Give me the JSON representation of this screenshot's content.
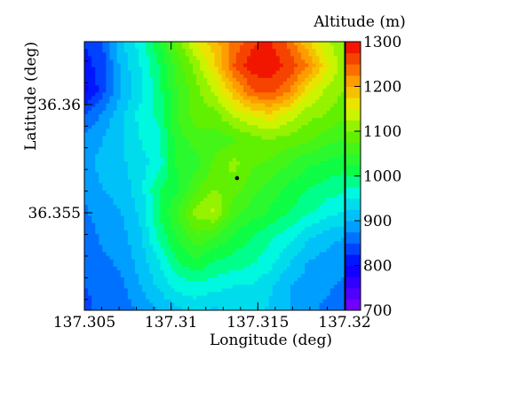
{
  "chart_data": {
    "type": "heatmap",
    "title": "",
    "xlabel": "Longitude (deg)",
    "ylabel": "Latitude (deg)",
    "colorbar_label": "Altitude (m)",
    "xlim": [
      137.305,
      137.32
    ],
    "ylim": [
      36.3505,
      36.3629
    ],
    "zlim": [
      700,
      1300
    ],
    "x_ticks": [
      {
        "value": 137.305,
        "label": "137.305"
      },
      {
        "value": 137.31,
        "label": "137.31"
      },
      {
        "value": 137.315,
        "label": "137.315"
      },
      {
        "value": 137.32,
        "label": "137.32"
      }
    ],
    "y_ticks": [
      {
        "value": 36.355,
        "label": "36.355"
      },
      {
        "value": 36.36,
        "label": "36.36"
      }
    ],
    "colorbar_ticks": [
      {
        "value": 700,
        "label": "700"
      },
      {
        "value": 800,
        "label": "800"
      },
      {
        "value": 900,
        "label": "900"
      },
      {
        "value": 1000,
        "label": "1000"
      },
      {
        "value": 1100,
        "label": "1100"
      },
      {
        "value": 1200,
        "label": "1200"
      },
      {
        "value": 1300,
        "label": "1300"
      }
    ],
    "grid": false,
    "marker": {
      "x": 137.3138,
      "y": 36.3566
    },
    "altitude_grid": {
      "columns": 15,
      "rows": 12,
      "row_order": "north_to_south",
      "values_m": [
        [
          830,
          850,
          920,
          960,
          1020,
          1090,
          1150,
          1190,
          1230,
          1270,
          1280,
          1240,
          1180,
          1130,
          1100
        ],
        [
          810,
          840,
          910,
          950,
          1000,
          1060,
          1110,
          1170,
          1250,
          1290,
          1290,
          1270,
          1230,
          1160,
          1110
        ],
        [
          790,
          840,
          900,
          940,
          990,
          1050,
          1090,
          1130,
          1190,
          1250,
          1260,
          1230,
          1160,
          1120,
          1100
        ],
        [
          850,
          880,
          920,
          960,
          980,
          1050,
          1090,
          1090,
          1130,
          1150,
          1170,
          1140,
          1110,
          1100,
          1080
        ],
        [
          880,
          900,
          920,
          950,
          970,
          1040,
          1060,
          1060,
          1070,
          1090,
          1100,
          1090,
          1080,
          1060,
          1050
        ],
        [
          890,
          910,
          920,
          940,
          960,
          1030,
          1040,
          1080,
          1110,
          1080,
          1070,
          1050,
          1030,
          1020,
          1010
        ],
        [
          880,
          900,
          910,
          940,
          1000,
          1020,
          1070,
          1100,
          1090,
          1060,
          1040,
          1020,
          1000,
          990,
          980
        ],
        [
          870,
          890,
          900,
          930,
          1000,
          1050,
          1110,
          1130,
          1060,
          1040,
          1020,
          1000,
          980,
          960,
          950
        ],
        [
          860,
          880,
          890,
          920,
          980,
          1030,
          1070,
          1050,
          1020,
          1000,
          980,
          960,
          930,
          910,
          900
        ],
        [
          850,
          870,
          880,
          910,
          950,
          1000,
          1020,
          1000,
          990,
          980,
          960,
          930,
          900,
          890,
          880
        ],
        [
          850,
          860,
          870,
          900,
          930,
          960,
          970,
          960,
          950,
          950,
          930,
          900,
          890,
          880,
          870
        ],
        [
          840,
          860,
          860,
          880,
          900,
          920,
          930,
          920,
          930,
          940,
          920,
          900,
          880,
          870,
          860
        ]
      ]
    }
  }
}
